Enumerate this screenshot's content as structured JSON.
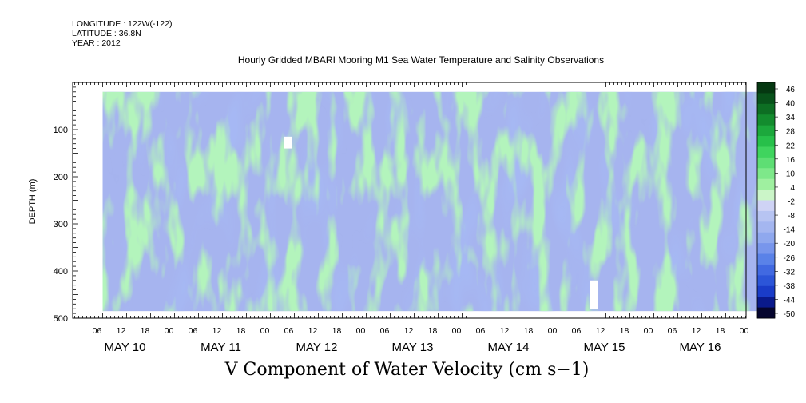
{
  "header": {
    "longitude": "LONGITUDE : 122W(-122)",
    "latitude": "LATITUDE : 36.8N",
    "year": "YEAR : 2012"
  },
  "chart_data": {
    "type": "heatmap",
    "title": "Hourly Gridded MBARI Mooring M1 Sea Water Temperature and Salinity Observations",
    "footer_title": "V Component of Water Velocity (cm s−1)",
    "xlabel": "",
    "ylabel": "DEPTH (m)",
    "x_range_hours": [
      0,
      168
    ],
    "x_hour_ticks": [
      "06",
      "12",
      "18",
      "00",
      "06",
      "12",
      "18",
      "00",
      "06",
      "12",
      "18",
      "00",
      "06",
      "12",
      "18",
      "00",
      "06",
      "12",
      "18",
      "00",
      "06",
      "12",
      "18",
      "00",
      "06",
      "12",
      "18",
      "00"
    ],
    "x_day_labels": [
      "MAY 10",
      "MAY 11",
      "MAY 12",
      "MAY 13",
      "MAY 14",
      "MAY 15",
      "MAY 16"
    ],
    "ylim": [
      500,
      0
    ],
    "y_ticks": [
      100,
      200,
      300,
      400,
      500
    ],
    "data_depth_range": [
      20,
      485
    ],
    "colorbar": {
      "levels": [
        "46",
        "40",
        "34",
        "28",
        "22",
        "16",
        "10",
        "4",
        "-2",
        "-8",
        "-14",
        "-20",
        "-26",
        "-32",
        "-38",
        "-44",
        "-50"
      ],
      "range": [
        -50,
        50
      ],
      "colors": [
        "#05052e",
        "#0a1a8c",
        "#1a3cc8",
        "#2c55d8",
        "#4169e1",
        "#5a82e8",
        "#7896ec",
        "#8fa8ee",
        "#a4b6f0",
        "#b7c4f2",
        "#cfd3f5",
        "#cbf5c8",
        "#9ff0a0",
        "#7ee88a",
        "#5ede74",
        "#3fd45e",
        "#27c04a",
        "#1ca83c",
        "#138c2e",
        "#0d6e23",
        "#08521a",
        "#053811"
      ]
    },
    "gaps": [
      {
        "day_hour": 46.5,
        "depth": [
          115,
          140
        ],
        "label": "gap"
      },
      {
        "day_hour": 123,
        "depth": [
          420,
          480
        ],
        "label": "gap"
      }
    ]
  }
}
